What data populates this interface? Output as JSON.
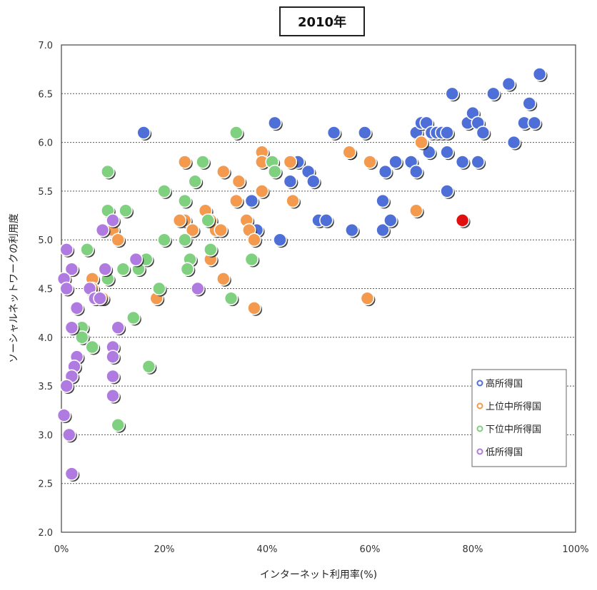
{
  "chart_data": {
    "type": "scatter",
    "title": "2010年",
    "xlabel": "インターネット利用率(%)",
    "ylabel": "ソーシャルネットワークの利用度",
    "xlim": [
      0,
      100
    ],
    "ylim": [
      2.0,
      7.0
    ],
    "x_ticks": [
      "0%",
      "20%",
      "40%",
      "60%",
      "80%",
      "100%"
    ],
    "y_ticks": [
      "2.0",
      "2.5",
      "3.0",
      "3.5",
      "4.0",
      "4.5",
      "5.0",
      "5.5",
      "6.0",
      "6.5",
      "7.0"
    ],
    "grid": "horizontal dotted",
    "legend_position": "bottom-right",
    "highlight": {
      "x": 78,
      "y": 5.2,
      "color": "#e01010"
    },
    "series": [
      {
        "name": "高所得国",
        "color": "#4f6fd8",
        "points": [
          [
            16,
            6.1
          ],
          [
            41.5,
            6.2
          ],
          [
            53,
            6.1
          ],
          [
            59,
            6.1
          ],
          [
            69,
            6.1
          ],
          [
            70,
            6.2
          ],
          [
            71,
            6.2
          ],
          [
            72,
            6.1
          ],
          [
            73,
            6.1
          ],
          [
            74,
            6.1
          ],
          [
            75,
            6.1
          ],
          [
            76,
            6.5
          ],
          [
            79,
            6.2
          ],
          [
            80,
            6.3
          ],
          [
            81,
            6.2
          ],
          [
            82,
            6.1
          ],
          [
            84,
            6.5
          ],
          [
            87,
            6.6
          ],
          [
            90,
            6.2
          ],
          [
            91,
            6.4
          ],
          [
            92,
            6.2
          ],
          [
            93,
            6.7
          ],
          [
            46,
            5.8
          ],
          [
            48,
            5.7
          ],
          [
            49,
            5.6
          ],
          [
            56,
            5.9
          ],
          [
            63,
            5.7
          ],
          [
            65,
            5.8
          ],
          [
            68,
            5.8
          ],
          [
            69,
            5.7
          ],
          [
            71.5,
            5.9
          ],
          [
            75,
            5.9
          ],
          [
            78,
            5.8
          ],
          [
            81,
            5.8
          ],
          [
            88,
            6.0
          ],
          [
            37,
            5.4
          ],
          [
            44.5,
            5.6
          ],
          [
            50,
            5.2
          ],
          [
            51.5,
            5.2
          ],
          [
            56.5,
            5.1
          ],
          [
            62.5,
            5.1
          ],
          [
            62.5,
            5.4
          ],
          [
            64,
            5.2
          ],
          [
            42.5,
            5.0
          ],
          [
            38,
            5.1
          ],
          [
            75,
            5.5
          ]
        ]
      },
      {
        "name": "上位中所得国",
        "color": "#f39a4f",
        "points": [
          [
            24,
            5.8
          ],
          [
            31.5,
            5.7
          ],
          [
            34.5,
            5.6
          ],
          [
            39,
            5.9
          ],
          [
            39,
            5.8
          ],
          [
            44.5,
            5.8
          ],
          [
            56,
            5.9
          ],
          [
            60,
            5.8
          ],
          [
            70,
            6.0
          ],
          [
            24,
            5.2
          ],
          [
            23,
            5.2
          ],
          [
            25.5,
            5.1
          ],
          [
            28,
            5.3
          ],
          [
            29,
            5.2
          ],
          [
            30,
            5.1
          ],
          [
            31,
            5.1
          ],
          [
            34,
            5.4
          ],
          [
            36,
            5.2
          ],
          [
            36.5,
            5.1
          ],
          [
            37.5,
            5.0
          ],
          [
            39,
            5.5
          ],
          [
            45,
            5.4
          ],
          [
            69,
            5.3
          ],
          [
            29,
            4.8
          ],
          [
            31.5,
            4.6
          ],
          [
            37.5,
            4.3
          ],
          [
            59.5,
            4.4
          ],
          [
            18.5,
            4.4
          ],
          [
            10,
            5.1
          ],
          [
            11,
            5.0
          ],
          [
            6,
            4.6
          ],
          [
            6,
            4.5
          ],
          [
            8,
            4.4
          ]
        ]
      },
      {
        "name": "下位中所得国",
        "color": "#7fd07f",
        "points": [
          [
            9,
            5.7
          ],
          [
            34,
            6.1
          ],
          [
            20,
            5.5
          ],
          [
            24,
            5.4
          ],
          [
            26,
            5.6
          ],
          [
            27.5,
            5.8
          ],
          [
            41,
            5.8
          ],
          [
            41.5,
            5.7
          ],
          [
            37,
            4.8
          ],
          [
            28.5,
            5.2
          ],
          [
            24,
            5.0
          ],
          [
            20,
            5.0
          ],
          [
            9,
            5.3
          ],
          [
            12.5,
            5.3
          ],
          [
            5,
            4.9
          ],
          [
            9,
            4.6
          ],
          [
            12,
            4.7
          ],
          [
            15,
            4.7
          ],
          [
            16.5,
            4.8
          ],
          [
            25,
            4.8
          ],
          [
            24.5,
            4.7
          ],
          [
            29,
            4.9
          ],
          [
            19,
            4.5
          ],
          [
            33,
            4.4
          ],
          [
            14,
            4.2
          ],
          [
            4,
            4.1
          ],
          [
            4,
            4.0
          ],
          [
            6,
            3.9
          ],
          [
            17,
            3.7
          ],
          [
            11,
            3.1
          ]
        ]
      },
      {
        "name": "低所得国",
        "color": "#b07be0",
        "points": [
          [
            1,
            4.9
          ],
          [
            2,
            4.7
          ],
          [
            0.5,
            4.6
          ],
          [
            1,
            4.5
          ],
          [
            3,
            4.3
          ],
          [
            2,
            4.1
          ],
          [
            10,
            5.2
          ],
          [
            8,
            5.1
          ],
          [
            8.5,
            4.7
          ],
          [
            5.5,
            4.5
          ],
          [
            6.5,
            4.4
          ],
          [
            7.5,
            4.4
          ],
          [
            14.5,
            4.8
          ],
          [
            26.5,
            4.5
          ],
          [
            11,
            4.1
          ],
          [
            3,
            3.8
          ],
          [
            2.5,
            3.7
          ],
          [
            10,
            3.9
          ],
          [
            10,
            3.8
          ],
          [
            2,
            3.6
          ],
          [
            1,
            3.5
          ],
          [
            10,
            3.6
          ],
          [
            10,
            3.4
          ],
          [
            0.5,
            3.2
          ],
          [
            1.5,
            3.0
          ],
          [
            2,
            2.6
          ]
        ]
      }
    ]
  }
}
